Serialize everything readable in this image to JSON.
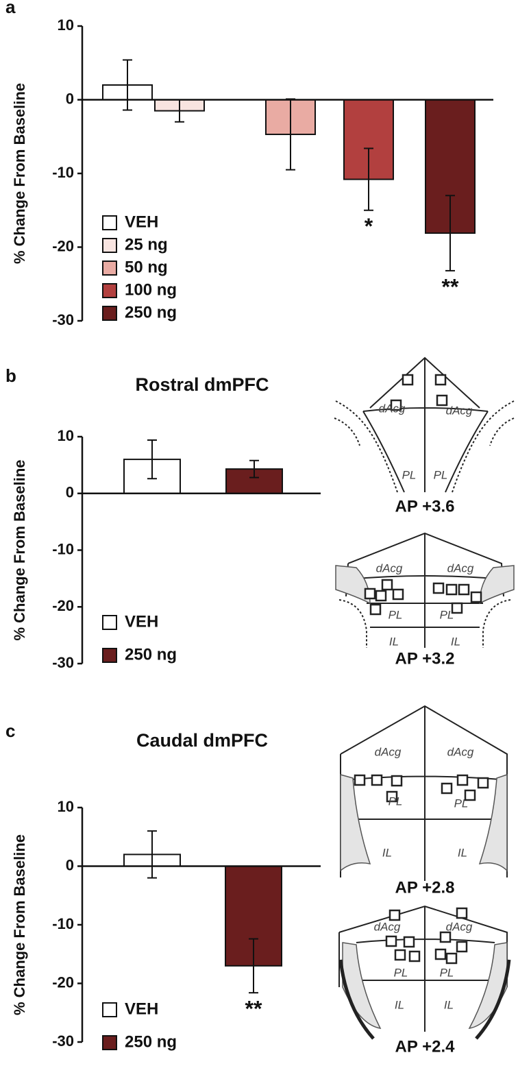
{
  "chart_data": [
    {
      "type": "bar",
      "panel": "a",
      "ylabel": "% Change From Baseline",
      "ylim": [
        -30,
        10
      ],
      "yticks": [
        -30,
        -20,
        -10,
        0,
        10
      ],
      "series": [
        {
          "name": "VEH",
          "color": "#ffffff",
          "values": [
            2.0
          ],
          "errors": [
            3.4
          ]
        },
        {
          "name": "25 ng",
          "color": "#f8e4e0",
          "values": [
            -1.5
          ],
          "errors": [
            1.5
          ]
        },
        {
          "name": "50 ng",
          "color": "#e9aba3",
          "values": [
            -4.7
          ],
          "errors": [
            4.8
          ]
        },
        {
          "name": "100 ng",
          "color": "#b2403f",
          "values": [
            -10.8
          ],
          "errors": [
            4.2
          ],
          "annotations": [
            "*"
          ]
        },
        {
          "name": "250 ng",
          "color": "#6a1e1e",
          "values": [
            -18.1
          ],
          "errors": [
            5.1
          ],
          "annotations": [
            "**"
          ]
        }
      ]
    },
    {
      "type": "bar",
      "panel": "b",
      "title": "Rostral dmPFC",
      "ylabel": "% Change From Baseline",
      "ylim": [
        -30,
        10
      ],
      "yticks": [
        -30,
        -20,
        -10,
        0,
        10
      ],
      "series": [
        {
          "name": "VEH",
          "color": "#ffffff",
          "values": [
            6.0
          ],
          "errors": [
            3.4
          ]
        },
        {
          "name": "250 ng",
          "color": "#6a1e1e",
          "values": [
            4.3
          ],
          "errors": [
            1.5
          ]
        }
      ]
    },
    {
      "type": "bar",
      "panel": "c",
      "title": "Caudal dmPFC",
      "ylabel": "% Change From Baseline",
      "ylim": [
        -30,
        10
      ],
      "yticks": [
        -30,
        -20,
        -10,
        0,
        10
      ],
      "series": [
        {
          "name": "VEH",
          "color": "#ffffff",
          "values": [
            2.0
          ],
          "errors": [
            4.0
          ]
        },
        {
          "name": "250 ng",
          "color": "#6a1e1e",
          "values": [
            -17.0
          ],
          "errors": [
            4.6
          ],
          "annotations": [
            "**"
          ]
        }
      ]
    }
  ],
  "diagrams": [
    {
      "label": "AP +3.6",
      "regions": [
        "dAcg",
        "dAcg",
        "PL",
        "PL"
      ]
    },
    {
      "label": "AP +3.2",
      "regions": [
        "dAcg",
        "dAcg",
        "PL",
        "PL",
        "IL",
        "IL"
      ]
    },
    {
      "label": "AP +2.8",
      "regions": [
        "dAcg",
        "dAcg",
        "PL",
        "PL",
        "IL",
        "IL"
      ]
    },
    {
      "label": "AP +2.4",
      "regions": [
        "dAcg",
        "dAcg",
        "PL",
        "PL",
        "IL",
        "IL"
      ]
    }
  ]
}
